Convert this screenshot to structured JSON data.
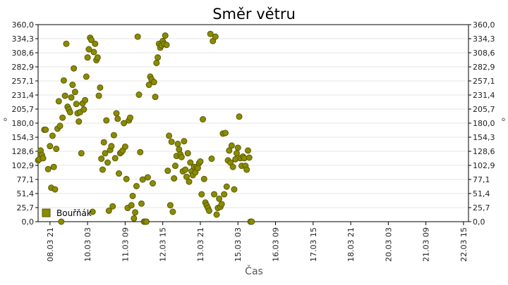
{
  "chart_data": {
    "type": "scatter",
    "title": "Směr větru",
    "xlabel": "Čas",
    "ylabel": "°",
    "y_ticks": [
      "0,0",
      "25,7",
      "51,4",
      "77,1",
      "102,9",
      "128,6",
      "154,3",
      "180,0",
      "205,7",
      "231,4",
      "257,1",
      "282,9",
      "308,6",
      "334,3",
      "360,0"
    ],
    "ylim": [
      0,
      360
    ],
    "x_ticks": [
      "08.03 21",
      "10.03 03",
      "11.03 09",
      "12.03 15",
      "13.03 21",
      "15.03 03",
      "16.03 09",
      "17.03 15",
      "18.03 21",
      "20.03 03",
      "21.03 09",
      "22.03 15"
    ],
    "x_tick_positions_hours": [
      0,
      30,
      60,
      90,
      120,
      150,
      180,
      210,
      240,
      270,
      300,
      330
    ],
    "xlim_hours": [
      -9.5,
      334
    ],
    "grid": true,
    "legend_position": "bottom-left",
    "colors": {
      "marker_fill": "#8b8b00",
      "marker_edge": "#5a5a00",
      "grid": "#e6e6e6"
    },
    "series": [
      {
        "name": "Bouřňák",
        "points": [
          [
            -9.5,
            112
          ],
          [
            -8.5,
            114
          ],
          [
            -7.5,
            130
          ],
          [
            -6.5,
            122
          ],
          [
            -5.5,
            116
          ],
          [
            -4.5,
            168
          ],
          [
            -3.5,
            168
          ],
          [
            -1.5,
            96
          ],
          [
            0,
            138
          ],
          [
            1,
            62
          ],
          [
            2,
            157
          ],
          [
            3,
            100
          ],
          [
            4,
            59
          ],
          [
            5,
            133
          ],
          [
            6,
            170
          ],
          [
            7,
            220
          ],
          [
            8,
            175
          ],
          [
            9,
            0
          ],
          [
            10,
            190
          ],
          [
            11,
            258
          ],
          [
            12,
            230
          ],
          [
            13,
            325
          ],
          [
            14,
            210
          ],
          [
            15,
            205
          ],
          [
            16,
            200
          ],
          [
            17,
            227
          ],
          [
            18,
            250
          ],
          [
            19,
            280
          ],
          [
            20,
            237
          ],
          [
            21,
            215
          ],
          [
            22,
            198
          ],
          [
            23,
            183
          ],
          [
            24,
            200
          ],
          [
            25,
            125
          ],
          [
            26,
            216
          ],
          [
            27,
            205
          ],
          [
            28,
            222
          ],
          [
            29,
            265
          ],
          [
            30,
            300
          ],
          [
            31,
            315
          ],
          [
            32,
            336
          ],
          [
            33,
            332
          ],
          [
            34,
            18
          ],
          [
            35,
            310
          ],
          [
            36,
            325
          ],
          [
            37,
            295
          ],
          [
            38,
            300
          ],
          [
            39,
            230
          ],
          [
            40,
            245
          ],
          [
            41,
            115
          ],
          [
            42,
            95
          ],
          [
            43,
            145
          ],
          [
            44,
            125
          ],
          [
            45,
            185
          ],
          [
            46,
            108
          ],
          [
            47,
            20
          ],
          [
            48,
            131
          ],
          [
            49,
            138
          ],
          [
            50,
            28
          ],
          [
            51,
            158
          ],
          [
            52,
            116
          ],
          [
            53,
            198
          ],
          [
            54,
            188
          ],
          [
            55,
            88
          ],
          [
            56,
            125
          ],
          [
            57,
            127
          ],
          [
            58,
            130
          ],
          [
            59,
            180
          ],
          [
            60,
            137
          ],
          [
            61,
            78
          ],
          [
            62,
            25
          ],
          [
            63,
            185
          ],
          [
            64,
            190
          ],
          [
            65,
            30
          ],
          [
            66,
            47
          ],
          [
            67,
            6
          ],
          [
            68,
            17
          ],
          [
            69,
            65
          ],
          [
            70,
            338
          ],
          [
            71,
            232
          ],
          [
            72,
            127
          ],
          [
            73,
            33
          ],
          [
            74,
            77
          ],
          [
            75,
            0
          ],
          [
            76,
            0
          ],
          [
            77,
            0
          ],
          [
            78,
            81
          ],
          [
            79,
            250
          ],
          [
            80,
            265
          ],
          [
            81,
            260
          ],
          [
            82,
            70
          ],
          [
            83,
            255
          ],
          [
            84,
            228
          ],
          [
            85,
            290
          ],
          [
            86,
            300
          ],
          [
            87,
            325
          ],
          [
            88,
            318
          ],
          [
            89,
            322
          ],
          [
            90,
            330
          ],
          [
            91,
            325
          ],
          [
            92,
            340
          ],
          [
            93,
            323
          ],
          [
            94,
            93
          ],
          [
            95,
            157
          ],
          [
            96,
            30
          ],
          [
            97,
            146
          ],
          [
            98,
            18
          ],
          [
            99,
            79
          ],
          [
            100,
            102
          ],
          [
            101,
            120
          ],
          [
            102,
            142
          ],
          [
            103,
            132
          ],
          [
            104,
            123
          ],
          [
            105,
            118
          ],
          [
            106,
            92
          ],
          [
            107,
            147
          ],
          [
            108,
            95
          ],
          [
            109,
            82
          ],
          [
            110,
            125
          ],
          [
            111,
            73
          ],
          [
            112,
            108
          ],
          [
            113,
            92
          ],
          [
            114,
            85
          ],
          [
            115,
            100
          ],
          [
            116,
            90
          ],
          [
            117,
            100
          ],
          [
            118,
            98
          ],
          [
            119,
            107
          ],
          [
            120,
            110
          ],
          [
            121,
            50
          ],
          [
            122,
            187
          ],
          [
            123,
            78
          ],
          [
            124,
            35
          ],
          [
            125,
            30
          ],
          [
            126,
            25
          ],
          [
            127,
            20
          ],
          [
            128,
            343
          ],
          [
            129,
            115
          ],
          [
            130,
            330
          ],
          [
            131,
            50
          ],
          [
            132,
            338
          ],
          [
            133,
            13
          ],
          [
            134,
            25
          ],
          [
            135,
            42
          ],
          [
            136,
            27
          ],
          [
            137,
            32
          ],
          [
            138,
            161
          ],
          [
            139,
            50
          ],
          [
            140,
            162
          ],
          [
            141,
            64
          ],
          [
            142,
            112
          ],
          [
            143,
            130
          ],
          [
            144,
            108
          ],
          [
            145,
            139
          ],
          [
            146,
            100
          ],
          [
            147,
            59
          ],
          [
            148,
            114
          ],
          [
            149,
            125
          ],
          [
            150,
            135
          ],
          [
            151,
            192
          ],
          [
            152,
            116
          ],
          [
            153,
            102
          ],
          [
            154,
            119
          ],
          [
            155,
            116
          ],
          [
            156,
            102
          ],
          [
            157,
            95
          ],
          [
            158,
            130
          ],
          [
            159,
            117
          ],
          [
            160,
            0
          ],
          [
            161,
            0
          ]
        ]
      }
    ]
  }
}
